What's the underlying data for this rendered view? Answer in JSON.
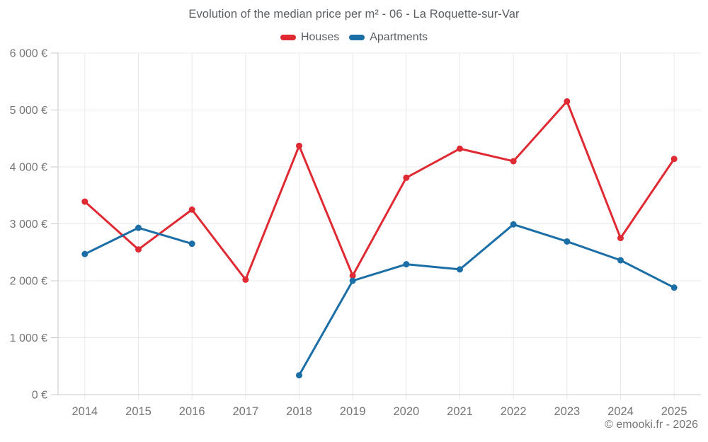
{
  "page": {
    "background": "#ffffff"
  },
  "footer": {
    "text": "© emooki.fr - 2026"
  },
  "colors": {
    "gridline": "#e9e9e9",
    "axis_line": "#c9c9c9",
    "tick_label": "#757575",
    "title_text": "#5a5e63",
    "houses": "#e02a33",
    "apartments": "#1b6fa6"
  },
  "chart_data": {
    "type": "line",
    "title": "Evolution of the median price per m² - 06 - La Roquette-sur-Var",
    "xlabel": "",
    "ylabel": "",
    "currency": "€",
    "grid": true,
    "legend_position": "top",
    "categories": [
      "2014",
      "2015",
      "2016",
      "2017",
      "2018",
      "2019",
      "2020",
      "2021",
      "2022",
      "2023",
      "2024",
      "2025"
    ],
    "series": [
      {
        "name": "Houses",
        "color": "#e02a33",
        "values": [
          3390,
          2550,
          3250,
          2020,
          4370,
          2090,
          3810,
          4320,
          4100,
          5150,
          2750,
          4140
        ]
      },
      {
        "name": "Apartments",
        "color": "#1b6fa6",
        "values": [
          2470,
          2930,
          2650,
          null,
          340,
          2000,
          2290,
          2200,
          2990,
          2690,
          2360,
          1880
        ]
      }
    ],
    "ylim": [
      0,
      6000
    ],
    "y_ticks": [
      {
        "value": 0,
        "label": "0 €"
      },
      {
        "value": 1000,
        "label": "1 000 €"
      },
      {
        "value": 2000,
        "label": "2 000 €"
      },
      {
        "value": 3000,
        "label": "3 000 €"
      },
      {
        "value": 4000,
        "label": "4 000 €"
      },
      {
        "value": 5000,
        "label": "5 000 €"
      },
      {
        "value": 6000,
        "label": "6 000 €"
      }
    ]
  }
}
